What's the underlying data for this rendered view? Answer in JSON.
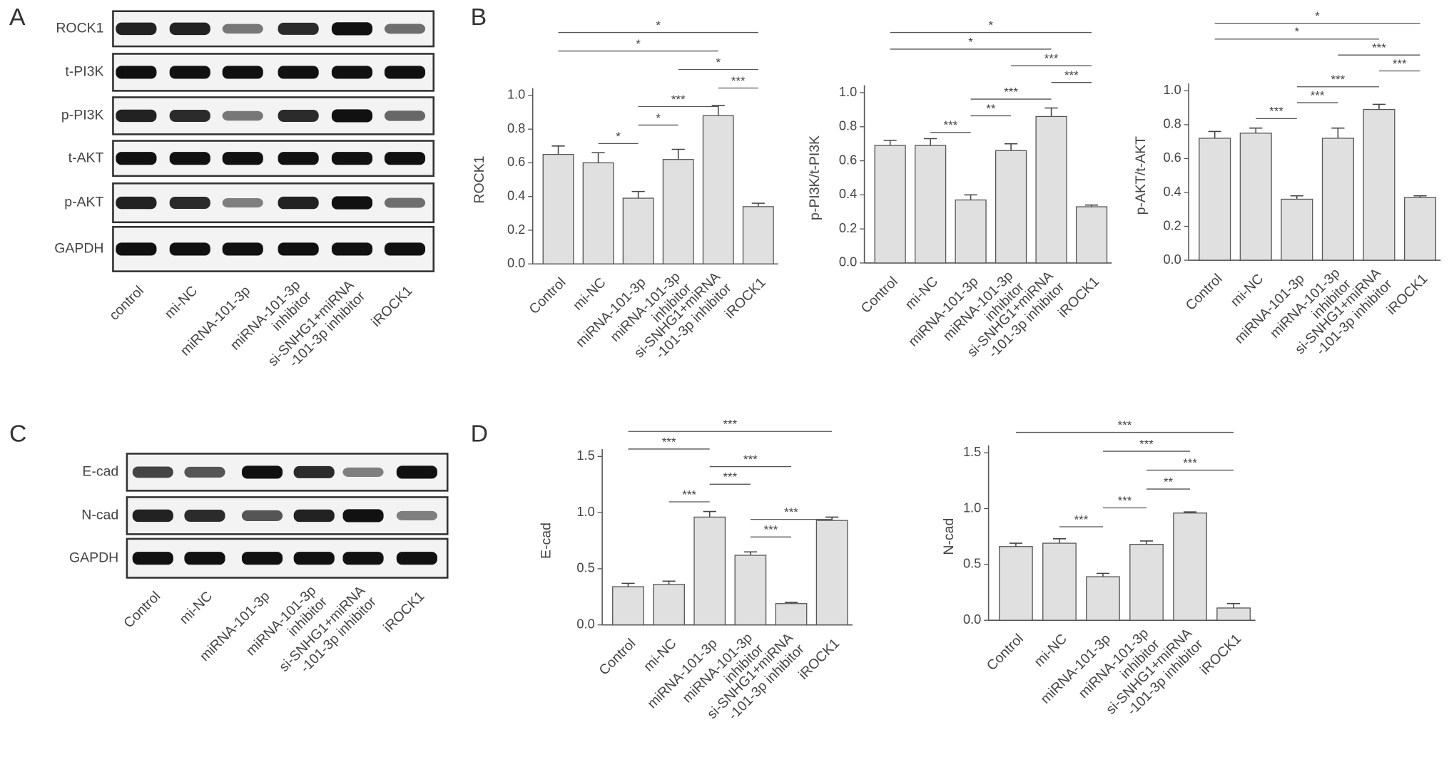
{
  "panels": [
    "A",
    "B",
    "C",
    "D"
  ],
  "blot_a": {
    "rows": [
      "ROCK1",
      "t-PI3K",
      "p-PI3K",
      "t-AKT",
      "p-AKT",
      "GAPDH"
    ],
    "lanes": [
      [
        "control"
      ],
      [
        "mi-NC"
      ],
      [
        "miRNA-101-3p"
      ],
      [
        "miRNA-101-3p",
        "inhibitor"
      ],
      [
        "si-SNHG1+miRNA",
        "-101-3p inhibitor"
      ],
      [
        "iROCK1"
      ]
    ]
  },
  "blot_c": {
    "rows": [
      "E-cad",
      "N-cad",
      "GAPDH"
    ],
    "lanes": [
      [
        "Control"
      ],
      [
        "mi-NC"
      ],
      [
        "miRNA-101-3p"
      ],
      [
        "miRNA-101-3p",
        "inhibitor"
      ],
      [
        "si-SNHG1+miRNA",
        "-101-3p inhibitor"
      ],
      [
        "iROCK1"
      ]
    ]
  },
  "chart_data": [
    {
      "type": "bar",
      "y_label": "ROCK1",
      "categories": [
        [
          "Control"
        ],
        [
          "mi-NC"
        ],
        [
          "miRNA-101-3p"
        ],
        [
          "miRNA-101-3p",
          "inhibitor"
        ],
        [
          "si-SNHG1+miRNA",
          "-101-3p inhibitor"
        ],
        [
          "iROCK1"
        ]
      ],
      "values": [
        0.65,
        0.6,
        0.39,
        0.62,
        0.88,
        0.34
      ],
      "errors": [
        0.05,
        0.06,
        0.04,
        0.06,
        0.06,
        0.02
      ],
      "ylim": [
        0,
        1.0
      ],
      "yticks": [
        {
          "value": 0,
          "label": "0.0"
        },
        0.2,
        0.4,
        0.6,
        0.8,
        {
          "value": 1,
          "label": "1.0"
        }
      ],
      "color": "#e0e0e0",
      "significance": [
        {
          "between": [
            0,
            5
          ],
          "label": "*"
        },
        {
          "between": [
            0,
            4
          ],
          "label": "*"
        },
        {
          "between": [
            3,
            5
          ],
          "label": "*"
        },
        {
          "between": [
            4,
            5
          ],
          "label": "***"
        },
        {
          "between": [
            2,
            4
          ],
          "label": "***"
        },
        {
          "between": [
            2,
            3
          ],
          "label": "*"
        },
        {
          "between": [
            1,
            2
          ],
          "label": "*"
        }
      ]
    },
    {
      "type": "bar",
      "y_label": "p-PI3K/t-PI3K",
      "categories": [
        [
          "Control"
        ],
        [
          "mi-NC"
        ],
        [
          "miRNA-101-3p"
        ],
        [
          "miRNA-101-3p",
          "inhibitor"
        ],
        [
          "si-SNHG1+miRNA",
          "-101-3p inhibitor"
        ],
        [
          "iROCK1"
        ]
      ],
      "values": [
        0.69,
        0.69,
        0.37,
        0.66,
        0.86,
        0.33
      ],
      "errors": [
        0.03,
        0.04,
        0.03,
        0.04,
        0.05,
        0.01
      ],
      "ylim": [
        0,
        1.0
      ],
      "yticks": [
        {
          "value": 0,
          "label": "0.0"
        },
        0.2,
        0.4,
        0.6,
        0.8,
        {
          "value": 1,
          "label": "1.0"
        }
      ],
      "color": "#e0e0e0",
      "significance": [
        {
          "between": [
            0,
            5
          ],
          "label": "*"
        },
        {
          "between": [
            0,
            4
          ],
          "label": "*"
        },
        {
          "between": [
            3,
            5
          ],
          "label": "***"
        },
        {
          "between": [
            4,
            5
          ],
          "label": "***"
        },
        {
          "between": [
            2,
            4
          ],
          "label": "***"
        },
        {
          "between": [
            2,
            3
          ],
          "label": "**"
        },
        {
          "between": [
            1,
            2
          ],
          "label": "***"
        }
      ]
    },
    {
      "type": "bar",
      "y_label": "p-AKT/t-AKT",
      "categories": [
        [
          "Control"
        ],
        [
          "mi-NC"
        ],
        [
          "miRNA-101-3p"
        ],
        [
          "miRNA-101-3p",
          "inhibitor"
        ],
        [
          "si-SNHG1+miRNA",
          "-101-3p inhibitor"
        ],
        [
          "iROCK1"
        ]
      ],
      "values": [
        0.72,
        0.75,
        0.36,
        0.72,
        0.89,
        0.37
      ],
      "errors": [
        0.04,
        0.03,
        0.02,
        0.06,
        0.03,
        0.01
      ],
      "ylim": [
        0,
        1.0
      ],
      "yticks": [
        {
          "value": 0,
          "label": "0.0"
        },
        0.2,
        0.4,
        0.6,
        0.8,
        {
          "value": 1,
          "label": "1.0"
        }
      ],
      "color": "#e0e0e0",
      "significance": [
        {
          "between": [
            0,
            5
          ],
          "label": "*"
        },
        {
          "between": [
            0,
            4
          ],
          "label": "*"
        },
        {
          "between": [
            3,
            5
          ],
          "label": "***"
        },
        {
          "between": [
            4,
            5
          ],
          "label": "***"
        },
        {
          "between": [
            2,
            4
          ],
          "label": "***"
        },
        {
          "between": [
            2,
            3
          ],
          "label": "***"
        },
        {
          "between": [
            1,
            2
          ],
          "label": "***"
        }
      ]
    },
    {
      "type": "bar",
      "y_label": "E-cad",
      "categories": [
        [
          "Control"
        ],
        [
          "mi-NC"
        ],
        [
          "miRNA-101-3p"
        ],
        [
          "miRNA-101-3p",
          "inhibitor"
        ],
        [
          "si-SNHG1+miRNA",
          "-101-3p inhibitor"
        ],
        [
          "iROCK1"
        ]
      ],
      "values": [
        0.34,
        0.36,
        0.96,
        0.62,
        0.19,
        0.93
      ],
      "errors": [
        0.03,
        0.03,
        0.05,
        0.03,
        0.01,
        0.03
      ],
      "ylim": [
        0,
        1.5
      ],
      "yticks": [
        {
          "value": 0,
          "label": "0.0"
        },
        0.5,
        {
          "value": 1,
          "label": "1.0"
        },
        1.5
      ],
      "color": "#e0e0e0",
      "significance": [
        {
          "between": [
            0,
            5
          ],
          "label": "***"
        },
        {
          "between": [
            0,
            2
          ],
          "label": "***"
        },
        {
          "between": [
            2,
            4
          ],
          "label": "***"
        },
        {
          "between": [
            2,
            3
          ],
          "label": "***"
        },
        {
          "between": [
            1,
            2
          ],
          "label": "***"
        },
        {
          "between": [
            3,
            5
          ],
          "label": "***"
        },
        {
          "between": [
            3,
            4
          ],
          "label": "***"
        }
      ]
    },
    {
      "type": "bar",
      "y_label": "N-cad",
      "categories": [
        [
          "Control"
        ],
        [
          "mi-NC"
        ],
        [
          "miRNA-101-3p"
        ],
        [
          "miRNA-101-3p",
          "inhibitor"
        ],
        [
          "si-SNHG1+miRNA",
          "-101-3p inhibitor"
        ],
        [
          "iROCK1"
        ]
      ],
      "values": [
        0.66,
        0.69,
        0.39,
        0.68,
        0.96,
        0.11
      ],
      "errors": [
        0.03,
        0.04,
        0.03,
        0.03,
        0.01,
        0.04
      ],
      "ylim": [
        0,
        1.5
      ],
      "yticks": [
        {
          "value": 0,
          "label": "0.0"
        },
        0.5,
        {
          "value": 1,
          "label": "1.0"
        },
        1.5
      ],
      "color": "#e0e0e0",
      "significance": [
        {
          "between": [
            0,
            5
          ],
          "label": "***"
        },
        {
          "between": [
            2,
            4
          ],
          "label": "***"
        },
        {
          "between": [
            3,
            5
          ],
          "label": "***"
        },
        {
          "between": [
            3,
            4
          ],
          "label": "**"
        },
        {
          "between": [
            2,
            3
          ],
          "label": "***"
        },
        {
          "between": [
            1,
            2
          ],
          "label": "***"
        }
      ]
    }
  ]
}
